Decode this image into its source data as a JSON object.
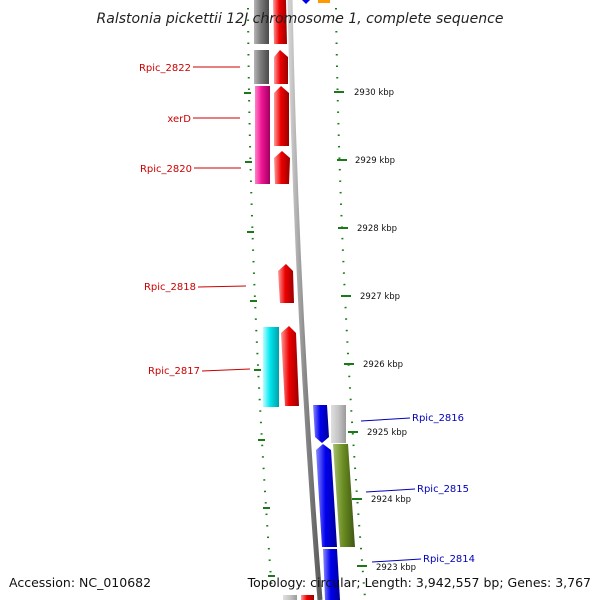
{
  "title": "Ralstonia pickettii 12J chromosome 1, complete sequence",
  "accession": "Accession: NC_010682",
  "summary": "Topology: circular; Length: 3,942,557 bp; Genes: 3,767",
  "colors": {
    "forward_label": "#cc0000",
    "reverse_label": "#0000bb",
    "tick": "#1a7a1a",
    "backbone": "#8a8a8a",
    "red_gene": "#ee0000",
    "blue_gene": "#0000ee",
    "gray_gene": "#808080",
    "magenta_gene": "#ee1493",
    "cyan_gene": "#00e5ee",
    "olive_gene": "#6b8e23"
  },
  "kbp_labels": [
    "2930 kbp",
    "2929 kbp",
    "2928 kbp",
    "2927 kbp",
    "2926 kbp",
    "2925 kbp",
    "2924 kbp",
    "2923 kbp"
  ],
  "gene_labels": [
    "Rpic_2822",
    "xerD",
    "Rpic_2820",
    "Rpic_2818",
    "Rpic_2817",
    "Rpic_2816",
    "Rpic_2815",
    "Rpic_2814"
  ]
}
